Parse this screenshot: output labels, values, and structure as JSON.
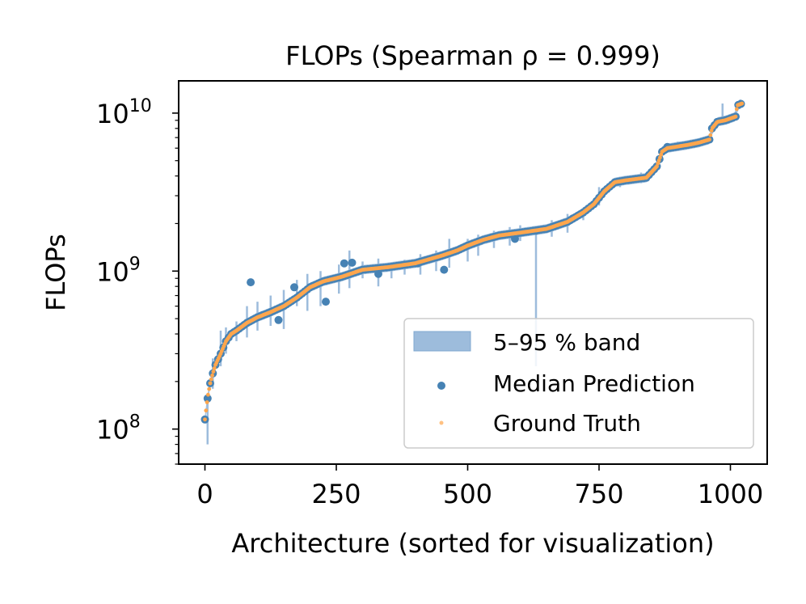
{
  "chart_data": {
    "type": "scatter",
    "title": "FLOPs (Spearman ρ = 0.999)",
    "xlabel": "Architecture (sorted for visualization)",
    "ylabel": "FLOPs",
    "xlim": [
      -50,
      1070
    ],
    "ylim": [
      60000000,
      16000000000
    ],
    "yscale": "log",
    "x_ticks": [
      {
        "value": 0,
        "label": "0"
      },
      {
        "value": 250,
        "label": "250"
      },
      {
        "value": 500,
        "label": "500"
      },
      {
        "value": 750,
        "label": "750"
      },
      {
        "value": 1000,
        "label": "1000"
      }
    ],
    "y_ticks": [
      {
        "value": 100000000,
        "base": "10",
        "exp": "8"
      },
      {
        "value": 1000000000,
        "base": "10",
        "exp": "9"
      },
      {
        "value": 10000000000,
        "base": "10",
        "exp": "10"
      }
    ],
    "legend": {
      "position": "lower-right",
      "entries": [
        {
          "label": "5–95 % band",
          "kind": "band"
        },
        {
          "label": "Median Prediction",
          "kind": "median"
        },
        {
          "label": "Ground Truth",
          "kind": "truth"
        }
      ]
    },
    "colors": {
      "band": "#9dbcdc",
      "median": "#4682b4",
      "truth": "#ffa64d"
    },
    "ground_truth_curve": [
      [
        0,
        115000000
      ],
      [
        3,
        140000000
      ],
      [
        6,
        165000000
      ],
      [
        10,
        195000000
      ],
      [
        15,
        225000000
      ],
      [
        20,
        255000000
      ],
      [
        30,
        300000000
      ],
      [
        40,
        360000000
      ],
      [
        50,
        400000000
      ],
      [
        60,
        420000000
      ],
      [
        80,
        470000000
      ],
      [
        100,
        510000000
      ],
      [
        125,
        550000000
      ],
      [
        150,
        600000000
      ],
      [
        175,
        680000000
      ],
      [
        200,
        790000000
      ],
      [
        225,
        860000000
      ],
      [
        260,
        920000000
      ],
      [
        300,
        1020000000
      ],
      [
        350,
        1060000000
      ],
      [
        400,
        1120000000
      ],
      [
        450,
        1250000000
      ],
      [
        480,
        1350000000
      ],
      [
        500,
        1450000000
      ],
      [
        530,
        1580000000
      ],
      [
        560,
        1680000000
      ],
      [
        600,
        1750000000
      ],
      [
        650,
        1850000000
      ],
      [
        690,
        2050000000
      ],
      [
        720,
        2350000000
      ],
      [
        740,
        2650000000
      ],
      [
        760,
        3200000000
      ],
      [
        780,
        3650000000
      ],
      [
        800,
        3750000000
      ],
      [
        840,
        3900000000
      ],
      [
        860,
        4600000000
      ],
      [
        870,
        5700000000
      ],
      [
        880,
        6000000000
      ],
      [
        920,
        6300000000
      ],
      [
        940,
        6500000000
      ],
      [
        960,
        6800000000
      ],
      [
        965,
        8000000000
      ],
      [
        975,
        8800000000
      ],
      [
        990,
        9000000000
      ],
      [
        1010,
        9500000000
      ],
      [
        1013,
        11200000000
      ],
      [
        1022,
        11500000000
      ]
    ],
    "median_outliers": [
      [
        87,
        850000000
      ],
      [
        140,
        490000000
      ],
      [
        170,
        790000000
      ],
      [
        230,
        640000000
      ],
      [
        265,
        1120000000
      ],
      [
        280,
        1130000000
      ],
      [
        330,
        960000000
      ],
      [
        405,
        1120000000
      ],
      [
        455,
        1020000000
      ],
      [
        590,
        1600000000
      ],
      [
        630,
        1800000000
      ],
      [
        700,
        2150000000
      ],
      [
        880,
        6100000000
      ]
    ],
    "band_spikes": [
      [
        5,
        80000000,
        160000000
      ],
      [
        15,
        180000000,
        280000000
      ],
      [
        30,
        250000000,
        420000000
      ],
      [
        40,
        300000000,
        440000000
      ],
      [
        60,
        360000000,
        480000000
      ],
      [
        80,
        380000000,
        600000000
      ],
      [
        100,
        420000000,
        640000000
      ],
      [
        125,
        450000000,
        700000000
      ],
      [
        150,
        430000000,
        760000000
      ],
      [
        175,
        600000000,
        880000000
      ],
      [
        195,
        560000000,
        960000000
      ],
      [
        220,
        600000000,
        1000000000
      ],
      [
        255,
        720000000,
        1100000000
      ],
      [
        275,
        780000000,
        1350000000
      ],
      [
        300,
        900000000,
        1150000000
      ],
      [
        330,
        800000000,
        1200000000
      ],
      [
        355,
        900000000,
        1130000000
      ],
      [
        380,
        950000000,
        1180000000
      ],
      [
        410,
        950000000,
        1280000000
      ],
      [
        440,
        1000000000,
        1350000000
      ],
      [
        465,
        1050000000,
        1600000000
      ],
      [
        500,
        1150000000,
        1600000000
      ],
      [
        520,
        1250000000,
        1700000000
      ],
      [
        550,
        1400000000,
        1800000000
      ],
      [
        580,
        1450000000,
        1900000000
      ],
      [
        600,
        1550000000,
        1950000000
      ],
      [
        630,
        250000000,
        1900000000
      ],
      [
        660,
        1650000000,
        2100000000
      ],
      [
        690,
        1750000000,
        2300000000
      ],
      [
        720,
        2100000000,
        2500000000
      ],
      [
        750,
        2600000000,
        3400000000
      ],
      [
        790,
        3400000000,
        3950000000
      ],
      [
        830,
        3600000000,
        4200000000
      ],
      [
        860,
        4300000000,
        4900000000
      ],
      [
        900,
        5800000000,
        6600000000
      ],
      [
        940,
        6200000000,
        6900000000
      ],
      [
        965,
        7400000000,
        8600000000
      ],
      [
        985,
        8500000000,
        11500000000
      ],
      [
        1010,
        9200000000,
        10200000000
      ]
    ]
  }
}
